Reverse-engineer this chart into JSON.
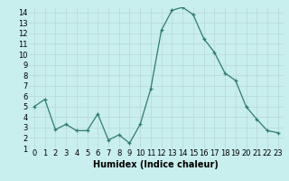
{
  "x": [
    0,
    1,
    2,
    3,
    4,
    5,
    6,
    7,
    8,
    9,
    10,
    11,
    12,
    13,
    14,
    15,
    16,
    17,
    18,
    19,
    20,
    21,
    22,
    23
  ],
  "y": [
    5.0,
    5.7,
    2.8,
    3.3,
    2.7,
    2.7,
    4.3,
    1.8,
    2.3,
    1.5,
    3.3,
    6.7,
    12.3,
    14.2,
    14.5,
    13.8,
    11.5,
    10.2,
    8.2,
    7.5,
    5.0,
    3.8,
    2.7,
    2.5
  ],
  "xlabel": "Humidex (Indice chaleur)",
  "ylim": [
    1,
    14.5
  ],
  "xlim_min": -0.5,
  "xlim_max": 23.5,
  "line_color": "#2e7d6e",
  "marker_color": "#2e7d6e",
  "bg_color": "#c8eeed",
  "grid_color": "#b8d8d6",
  "yticks": [
    1,
    2,
    3,
    4,
    5,
    6,
    7,
    8,
    9,
    10,
    11,
    12,
    13,
    14
  ],
  "xticks": [
    0,
    1,
    2,
    3,
    4,
    5,
    6,
    7,
    8,
    9,
    10,
    11,
    12,
    13,
    14,
    15,
    16,
    17,
    18,
    19,
    20,
    21,
    22,
    23
  ],
  "xlabel_fontsize": 7,
  "tick_fontsize": 6
}
